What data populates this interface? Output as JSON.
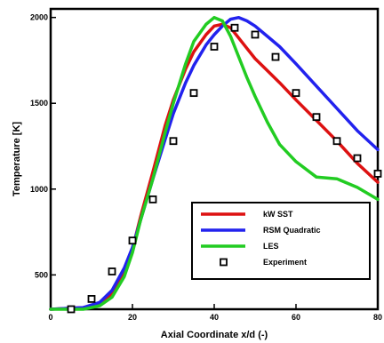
{
  "chart_data": {
    "type": "line",
    "xlabel": "Axial Coordinate x/d (-)",
    "ylabel": "Temperature [K]",
    "xlim": [
      0,
      80
    ],
    "ylim": [
      300,
      2050
    ],
    "xticks": [
      0,
      20,
      40,
      60,
      80
    ],
    "yticks": [
      500,
      1000,
      1500,
      2000
    ],
    "grid": false,
    "legend_position": "bottom-right",
    "series": [
      {
        "name": "kW SST",
        "kind": "line",
        "color": "#dd1111",
        "x": [
          0,
          8,
          12,
          15,
          18,
          20,
          22,
          25,
          28,
          30,
          33,
          35,
          38,
          40,
          42,
          44,
          46,
          48,
          50,
          53,
          56,
          60,
          65,
          70,
          75,
          80
        ],
        "y": [
          300,
          310,
          330,
          390,
          520,
          650,
          840,
          1100,
          1370,
          1520,
          1700,
          1800,
          1900,
          1950,
          1960,
          1940,
          1880,
          1820,
          1760,
          1690,
          1620,
          1520,
          1400,
          1280,
          1150,
          1040
        ]
      },
      {
        "name": "RSM Quadratic",
        "kind": "line",
        "color": "#2222ee",
        "x": [
          0,
          8,
          12,
          15,
          18,
          20,
          22,
          25,
          28,
          30,
          33,
          35,
          38,
          40,
          42,
          44,
          46,
          48,
          50,
          53,
          56,
          60,
          65,
          70,
          75,
          80
        ],
        "y": [
          300,
          310,
          340,
          410,
          540,
          660,
          820,
          1060,
          1290,
          1440,
          1620,
          1720,
          1840,
          1900,
          1950,
          1990,
          2000,
          1980,
          1950,
          1890,
          1830,
          1730,
          1600,
          1470,
          1340,
          1230
        ]
      },
      {
        "name": "LES",
        "kind": "line",
        "color": "#22cc22",
        "x": [
          0,
          8,
          12,
          15,
          18,
          20,
          22,
          25,
          28,
          30,
          33,
          35,
          38,
          40,
          42,
          44,
          46,
          48,
          50,
          53,
          56,
          60,
          65,
          70,
          75,
          80
        ],
        "y": [
          300,
          300,
          320,
          370,
          490,
          630,
          820,
          1060,
          1330,
          1500,
          1730,
          1860,
          1960,
          2000,
          1980,
          1890,
          1770,
          1650,
          1540,
          1390,
          1260,
          1160,
          1070,
          1060,
          1010,
          940
        ]
      },
      {
        "name": "Experiment",
        "kind": "marker",
        "color": "#000000",
        "x": [
          5,
          10,
          15,
          20,
          25,
          30,
          35,
          40,
          45,
          50,
          55,
          60,
          65,
          70,
          75,
          80
        ],
        "y": [
          300,
          360,
          520,
          700,
          940,
          1280,
          1560,
          1830,
          1940,
          1900,
          1770,
          1560,
          1420,
          1280,
          1180,
          1090
        ]
      }
    ]
  }
}
